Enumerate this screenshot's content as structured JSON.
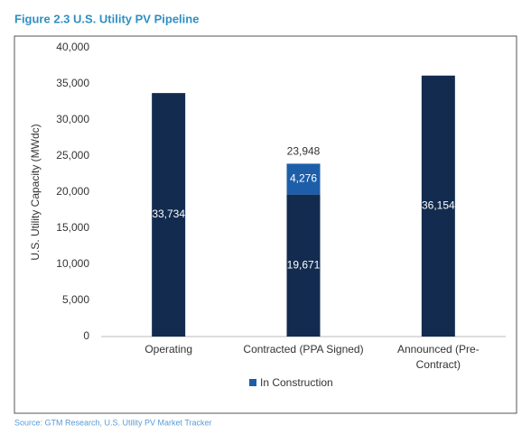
{
  "chart_data": {
    "type": "stacked-bar",
    "title": "Figure 2.3 U.S. Utility PV Pipeline",
    "source": "Source:  GTM Research, U.S. Utility PV Market Tracker",
    "y_label": "U.S. Utility Capacity (MWdc)",
    "categories": [
      "Operating",
      "Contracted (PPA Signed)",
      "Announced (Pre-Contract)"
    ],
    "series": [
      {
        "color": "#132b4f",
        "values": [
          33734,
          19671,
          36154
        ],
        "value_labels": [
          "33,734",
          "19,671",
          "36,154"
        ]
      },
      {
        "name": "In Construction",
        "color": "#1d5ea8",
        "values": [
          null,
          4276,
          null
        ],
        "value_labels": [
          null,
          "4,276",
          null
        ]
      }
    ],
    "totals": [
      null,
      23948,
      null
    ],
    "total_labels": [
      null,
      "23,948",
      null
    ],
    "ylim": [
      0,
      40000
    ],
    "yticks": [
      0,
      {
        "value": 5000,
        "label": "5,000"
      },
      {
        "value": 10000,
        "label": "10,000"
      },
      {
        "value": 15000,
        "label": "15,000"
      },
      {
        "value": 20000,
        "label": "20,000"
      },
      {
        "value": 25000,
        "label": "25,000"
      },
      {
        "value": 30000,
        "label": "30,000"
      },
      {
        "value": 35000,
        "label": "35,000"
      },
      {
        "value": 40000,
        "label": "40,000"
      }
    ],
    "grid": false
  }
}
